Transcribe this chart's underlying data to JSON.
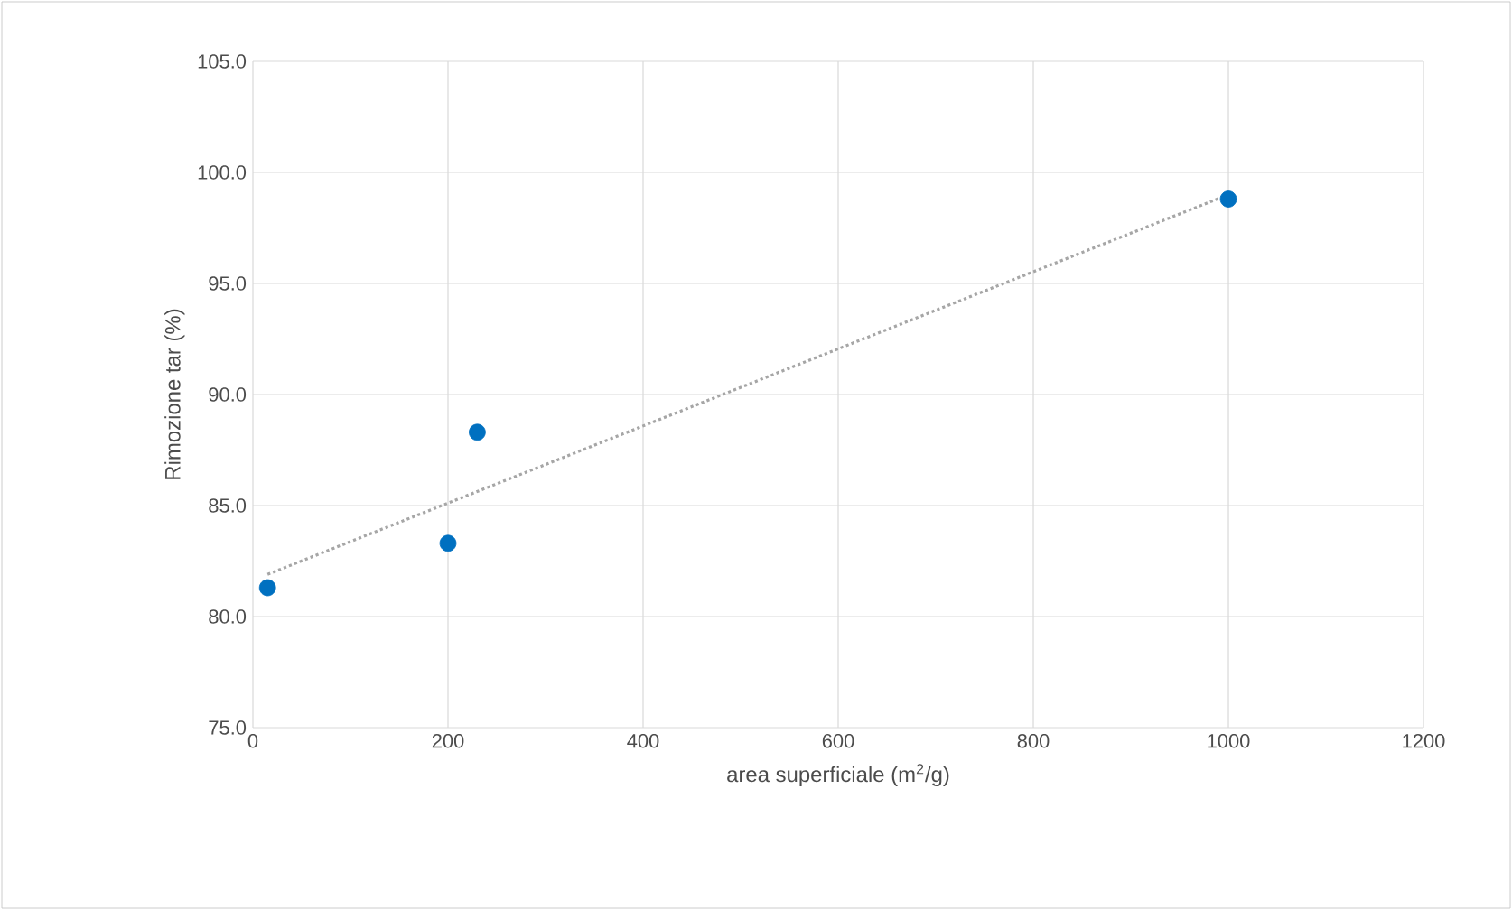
{
  "chart_data": {
    "type": "scatter",
    "xlabel": "area superficiale (m$^{2}$/g)",
    "ylabel": "Rimozione tar (%)",
    "xlim": [
      0,
      1200
    ],
    "xticks": [
      0,
      200,
      400,
      600,
      800,
      1000,
      1200
    ],
    "ylim": [
      75,
      105
    ],
    "yticks": [
      {
        "value": 75,
        "label": "75.0"
      },
      {
        "value": 80,
        "label": "80.0"
      },
      {
        "value": 85,
        "label": "85.0"
      },
      {
        "value": 90,
        "label": "90.0"
      },
      {
        "value": 95,
        "label": "95.0"
      },
      {
        "value": 100,
        "label": "100.0"
      },
      {
        "value": 105,
        "label": "105.0"
      }
    ],
    "grid": true,
    "series": [
      {
        "color": "#0070c0",
        "marker": "circle",
        "x": [
          15,
          200,
          230,
          1000
        ],
        "values": [
          81.3,
          83.3,
          88.3,
          98.8
        ]
      },
      {
        "type": "line",
        "color": "#a6a6a6",
        "marker": "none",
        "line_style": "dotted",
        "x": [
          15,
          1000
        ],
        "values": [
          81.9,
          99.0
        ]
      }
    ]
  }
}
